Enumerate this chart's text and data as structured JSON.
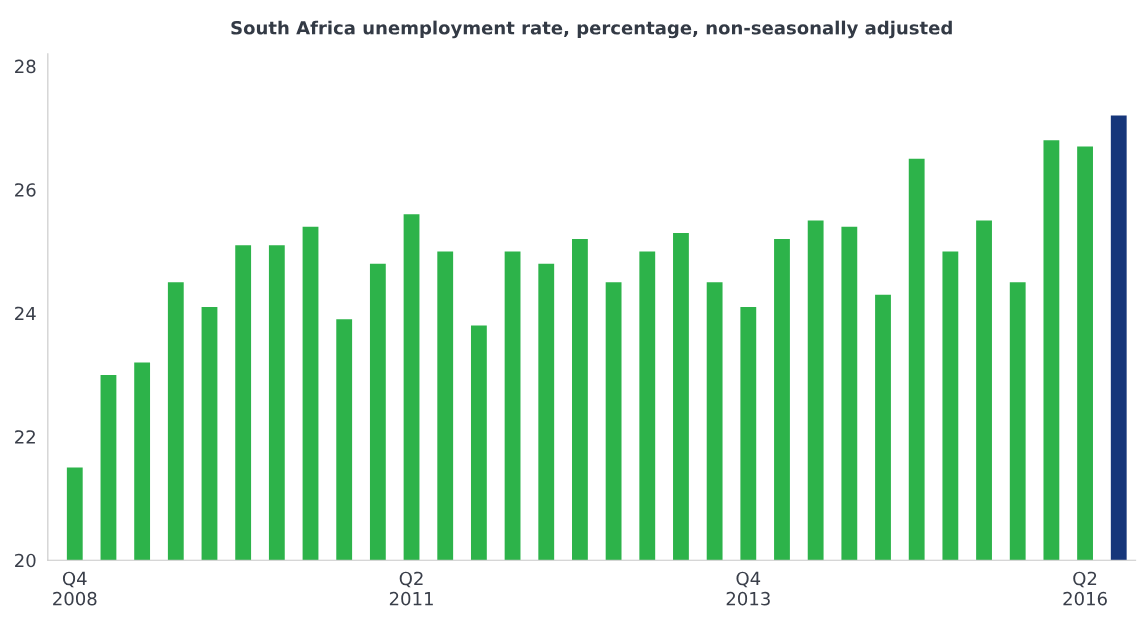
{
  "chart_data": {
    "type": "bar",
    "title": "South Africa unemployment rate, percentage, non-seasonally adjusted",
    "categories": [
      "Q4\n2008",
      null,
      null,
      null,
      null,
      null,
      null,
      null,
      null,
      null,
      "Q2\n2011",
      null,
      null,
      null,
      null,
      null,
      null,
      null,
      null,
      null,
      "Q4\n2013",
      null,
      null,
      null,
      null,
      null,
      null,
      null,
      null,
      null,
      "Q2\n2016",
      null
    ],
    "values": [
      21.5,
      23.0,
      23.2,
      24.5,
      24.1,
      25.1,
      25.1,
      25.4,
      23.9,
      24.8,
      25.6,
      25.0,
      23.8,
      25.0,
      24.8,
      25.2,
      24.5,
      25.0,
      25.3,
      24.5,
      24.1,
      25.2,
      25.5,
      25.4,
      24.3,
      26.5,
      25.0,
      25.5,
      24.5,
      26.8,
      26.7,
      27.2
    ],
    "colors": [
      "#2db34a",
      "#2db34a",
      "#2db34a",
      "#2db34a",
      "#2db34a",
      "#2db34a",
      "#2db34a",
      "#2db34a",
      "#2db34a",
      "#2db34a",
      "#2db34a",
      "#2db34a",
      "#2db34a",
      "#2db34a",
      "#2db34a",
      "#2db34a",
      "#2db34a",
      "#2db34a",
      "#2db34a",
      "#2db34a",
      "#2db34a",
      "#2db34a",
      "#2db34a",
      "#2db34a",
      "#2db34a",
      "#2db34a",
      "#2db34a",
      "#2db34a",
      "#2db34a",
      "#2db34a",
      "#2db34a",
      "#16367a"
    ],
    "ylim": [
      20,
      28.2
    ],
    "yticks": [
      20,
      22,
      24,
      26,
      28
    ],
    "grid": false
  }
}
